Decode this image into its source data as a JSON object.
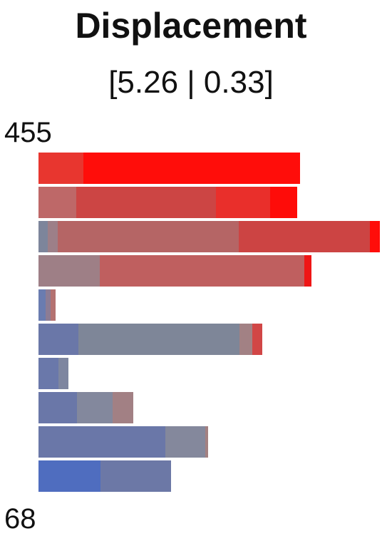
{
  "chart_data": {
    "type": "bar",
    "orientation": "horizontal",
    "stacked": true,
    "title": "Displacement",
    "subtitle": "[5.26 | 0.33]",
    "y_max_label": "455",
    "y_min_label": "68",
    "xlim": [
      0,
      480
    ],
    "rows": [
      {
        "segments": [
          {
            "value": 63,
            "color": "#e8362f"
          },
          {
            "value": 304,
            "color": "#ff0d0a"
          }
        ]
      },
      {
        "segments": [
          {
            "value": 53,
            "color": "#be6868"
          },
          {
            "value": 196,
            "color": "#cc4544"
          },
          {
            "value": 76,
            "color": "#e92f2b"
          },
          {
            "value": 38,
            "color": "#fe0c09"
          }
        ]
      },
      {
        "segments": [
          {
            "value": 13,
            "color": "#7d859b"
          },
          {
            "value": 14,
            "color": "#9d7f88"
          },
          {
            "value": 254,
            "color": "#b56565"
          },
          {
            "value": 184,
            "color": "#cc4443"
          },
          {
            "value": 14,
            "color": "#ff0d0a"
          }
        ]
      },
      {
        "segments": [
          {
            "value": 86,
            "color": "#9e7f86"
          },
          {
            "value": 287,
            "color": "#bf5f5f"
          },
          {
            "value": 10,
            "color": "#ef1515"
          }
        ]
      },
      {
        "segments": [
          {
            "value": 10,
            "color": "#6a7cb0"
          },
          {
            "value": 7,
            "color": "#8c7c94"
          },
          {
            "value": 7,
            "color": "#b47271"
          }
        ]
      },
      {
        "segments": [
          {
            "value": 56,
            "color": "#6a77a8"
          },
          {
            "value": 226,
            "color": "#7e8698"
          },
          {
            "value": 18,
            "color": "#a28184"
          },
          {
            "value": 14,
            "color": "#d14646"
          }
        ]
      },
      {
        "segments": [
          {
            "value": 28,
            "color": "#6a78aa"
          },
          {
            "value": 14,
            "color": "#7e86a0"
          }
        ]
      },
      {
        "segments": [
          {
            "value": 54,
            "color": "#6a77a8"
          },
          {
            "value": 50,
            "color": "#83889d"
          },
          {
            "value": 29,
            "color": "#a28084"
          }
        ]
      },
      {
        "segments": [
          {
            "value": 178,
            "color": "#6a77a8"
          },
          {
            "value": 56,
            "color": "#84889c"
          },
          {
            "value": 4,
            "color": "#a38081"
          }
        ]
      },
      {
        "segments": [
          {
            "value": 87,
            "color": "#4f6dbf"
          },
          {
            "value": 99,
            "color": "#6c78a6"
          }
        ]
      }
    ]
  }
}
